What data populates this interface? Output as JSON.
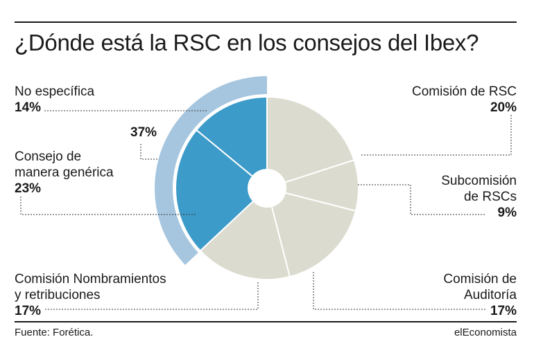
{
  "title": "¿Dónde está la RSC en los consejos del Ibex?",
  "source": "Fuente: Forética.",
  "brand": "elEconomista",
  "group_label": "37%",
  "colors": {
    "highlight": "#3d9bc9",
    "highlight_ring": "#a6c6df",
    "neutral": "#dcdbcf",
    "text": "#1a1a1a"
  },
  "chart_data": {
    "type": "pie",
    "categories": [
      "Comisión de RSC",
      "Subcomisión de RSCs",
      "Comisión de Auditoría",
      "Comisión Nombramientos y retribuciones",
      "Consejo de manera genérica",
      "No específica"
    ],
    "values": [
      20,
      9,
      17,
      17,
      23,
      14
    ],
    "value_labels": [
      "20%",
      "9%",
      "17%",
      "17%",
      "23%",
      "14%"
    ],
    "highlighted": [
      false,
      false,
      false,
      false,
      true,
      true
    ],
    "group_total": 37,
    "donut": true
  },
  "labels": {
    "rsc": {
      "line1": "Comisión de RSC",
      "pct": "20%"
    },
    "subcomision": {
      "line1": "Subcomisión",
      "line2": "de RSCs",
      "pct": "9%"
    },
    "auditoria": {
      "line1": "Comisión de",
      "line2": "Auditoría",
      "pct": "17%"
    },
    "nombramientos": {
      "line1": "Comisión Nombramientos",
      "line2": "y retribuciones",
      "pct": "17%"
    },
    "consejo": {
      "line1": "Consejo de",
      "line2": "manera genérica",
      "pct": "23%"
    },
    "noespecifica": {
      "line1": "No específica",
      "pct": "14%"
    }
  }
}
